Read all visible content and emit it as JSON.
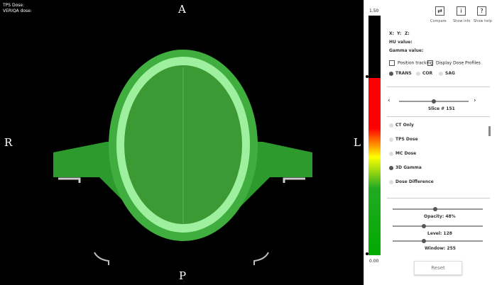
{
  "overlay": {
    "tps_dose": "TPS Dose:",
    "veriqa_dose": "VERIQA dose:"
  },
  "orientation": {
    "top": "A",
    "left": "R",
    "right": "L",
    "bottom": "P"
  },
  "colorbar": {
    "max": "1.50",
    "min": "0.00"
  },
  "toolbar": [
    {
      "label": "Compare"
    },
    {
      "icon": "i",
      "label": "Show info"
    },
    {
      "icon": "?",
      "label": "Show help"
    }
  ],
  "info": {
    "x": "X:",
    "y": "Y:",
    "z": "Z:",
    "hu": "HU value:",
    "gamma": "Gamma value:"
  },
  "checkboxes": [
    "Position tracking",
    "Display Dose Profiles"
  ],
  "views": [
    "TRANS",
    "COR",
    "SAG"
  ],
  "slice": "Slice # 151",
  "layers": [
    "CT Only",
    "TPS Dose",
    "MC Dose",
    "3D Gamma",
    "Dose Difference"
  ],
  "sliders": [
    "Opacity: 48%",
    "Level: 128",
    "Window: 255"
  ],
  "reset": "Reset"
}
